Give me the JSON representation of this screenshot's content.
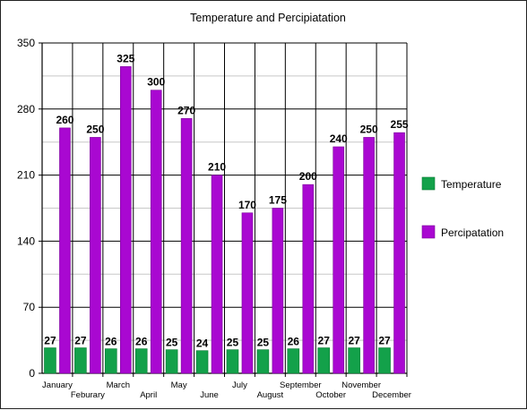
{
  "chart_data": {
    "type": "bar",
    "title": "Temperature and Percipiatation",
    "categories": [
      "January",
      "Feburary",
      "March",
      "April",
      "May",
      "June",
      "July",
      "August",
      "September",
      "October",
      "November",
      "December"
    ],
    "series": [
      {
        "name": "Temperature",
        "color": "#13a14a",
        "values": [
          27,
          27,
          26,
          26,
          25,
          24,
          25,
          25,
          26,
          27,
          27,
          27
        ]
      },
      {
        "name": "Percipatation",
        "color": "#a908d1",
        "values": [
          260,
          250,
          325,
          300,
          270,
          210,
          170,
          175,
          200,
          240,
          250,
          255
        ]
      }
    ],
    "ylim": [
      0,
      350
    ],
    "yticks": [
      "0",
      "70",
      "140",
      "210",
      "280",
      "350"
    ],
    "xlabel": "",
    "ylabel": "",
    "grid": true,
    "legend": "right"
  }
}
